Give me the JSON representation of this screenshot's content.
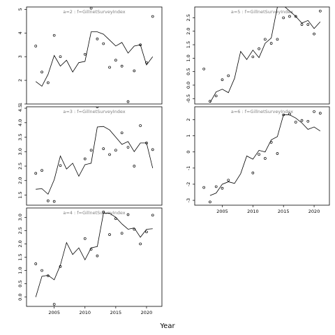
{
  "figure": {
    "xlabel": "Year"
  },
  "chart_data": [
    {
      "type": "scatter",
      "strip": "a=2 : f=GillnetSurveyIndex",
      "xlim": [
        2000.5,
        2022.5
      ],
      "ylim": [
        1.0,
        5.1
      ],
      "yticks": [
        "1",
        "2",
        "3",
        "4",
        "5"
      ],
      "xticks": [],
      "series": [
        {
          "x": [
            2002,
            2003,
            2004,
            2005,
            2006,
            2007,
            2008,
            2009,
            2010,
            2011,
            2012,
            2013,
            2014,
            2015,
            2016,
            2017,
            2018,
            2019,
            2020,
            2021
          ],
          "y": [
            1.95,
            1.75,
            2.25,
            3.05,
            2.6,
            2.85,
            2.35,
            2.75,
            2.8,
            4.05,
            4.05,
            3.95,
            3.7,
            3.45,
            3.6,
            3.15,
            3.45,
            3.5,
            2.65,
            3.0
          ]
        },
        {
          "x": [
            2002,
            2003,
            2004,
            2005,
            2006,
            2010,
            2011,
            2012,
            2013,
            2014,
            2015,
            2016,
            2017,
            2018,
            2019,
            2020,
            2021
          ],
          "y": [
            3.45,
            2.35,
            1.9,
            3.9,
            3.0,
            3.1,
            5.05,
            3.75,
            3.55,
            2.55,
            2.85,
            2.6,
            1.1,
            2.4,
            3.5,
            2.75,
            4.7
          ]
        }
      ]
    },
    {
      "type": "scatter",
      "strip": "a=3 : f=GillnetSurveyIndex",
      "xlim": [
        2000.5,
        2022.5
      ],
      "ylim": [
        1.15,
        4.55
      ],
      "yticks": [
        "1.5",
        "2.0",
        "2.5",
        "3.0",
        "3.5",
        "4.0",
        "4.5"
      ],
      "xticks": [],
      "series": [
        {
          "x": [
            2002,
            2003,
            2004,
            2005,
            2006,
            2007,
            2008,
            2009,
            2010,
            2011,
            2012,
            2013,
            2014,
            2015,
            2016,
            2017,
            2018,
            2019,
            2020,
            2021
          ],
          "y": [
            1.7,
            1.72,
            1.53,
            2.03,
            2.85,
            2.4,
            2.6,
            2.15,
            2.55,
            2.6,
            3.85,
            3.87,
            3.75,
            3.5,
            3.25,
            3.35,
            3.0,
            3.3,
            3.3,
            2.43
          ]
        },
        {
          "x": [
            2002,
            2003,
            2004,
            2005,
            2006,
            2010,
            2011,
            2012,
            2013,
            2014,
            2015,
            2016,
            2017,
            2018,
            2019,
            2020,
            2021
          ],
          "y": [
            2.25,
            2.35,
            1.3,
            1.28,
            2.52,
            2.75,
            3.05,
            4.55,
            3.1,
            2.9,
            3.05,
            3.65,
            3.15,
            2.5,
            3.9,
            3.3,
            3.07
          ]
        }
      ]
    },
    {
      "type": "scatter",
      "strip": "a=4 : f=GillnetSurveyIndex",
      "xlim": [
        2000.5,
        2022.5
      ],
      "ylim": [
        -0.35,
        3.35
      ],
      "yticks": [
        "0.0",
        "0.5",
        "1.0",
        "1.5",
        "2.0",
        "2.5",
        "3.0"
      ],
      "xticks": [
        "2005",
        "2010",
        "2015",
        "2020"
      ],
      "series": [
        {
          "x": [
            2002,
            2003,
            2004,
            2005,
            2006,
            2007,
            2008,
            2009,
            2010,
            2011,
            2012,
            2013,
            2014,
            2015,
            2016,
            2017,
            2018,
            2019,
            2020,
            2021
          ],
          "y": [
            0.0,
            0.78,
            0.82,
            0.65,
            1.2,
            2.05,
            1.6,
            1.85,
            1.4,
            1.85,
            1.9,
            3.15,
            3.15,
            3.0,
            2.75,
            2.55,
            2.6,
            2.25,
            2.55,
            2.57
          ]
        },
        {
          "x": [
            2002,
            2003,
            2004,
            2005,
            2006,
            2010,
            2011,
            2012,
            2013,
            2014,
            2015,
            2016,
            2017,
            2018,
            2019,
            2020,
            2021
          ],
          "y": [
            1.25,
            1.0,
            0.8,
            -0.27,
            1.15,
            2.2,
            1.8,
            1.55,
            3.2,
            2.35,
            2.95,
            2.4,
            3.1,
            2.55,
            2.0,
            2.45,
            3.08
          ]
        }
      ]
    },
    {
      "type": "scatter",
      "strip": "a=5 : f=GillnetSurveyIndex",
      "xlim": [
        2000.5,
        2022.5
      ],
      "ylim": [
        -0.7,
        2.9
      ],
      "yticks": [
        "-0.5",
        "0.0",
        "0.5",
        "1.0",
        "1.5",
        "2.0",
        "2.5"
      ],
      "xticks": [],
      "series": [
        {
          "x": [
            2003,
            2004,
            2005,
            2006,
            2007,
            2008,
            2009,
            2010,
            2011,
            2012,
            2013,
            2014,
            2015,
            2016,
            2017,
            2018,
            2019,
            2020,
            2021
          ],
          "y": [
            -0.65,
            -0.25,
            -0.15,
            -0.28,
            0.25,
            1.25,
            0.95,
            1.3,
            1.02,
            1.55,
            1.75,
            2.9,
            2.95,
            2.75,
            2.55,
            2.3,
            2.4,
            2.1,
            2.35
          ]
        },
        {
          "x": [
            2002,
            2003,
            2004,
            2005,
            2006,
            2010,
            2011,
            2012,
            2013,
            2014,
            2015,
            2016,
            2017,
            2018,
            2019,
            2020,
            2021
          ],
          "y": [
            0.6,
            -0.6,
            -0.4,
            0.2,
            0.35,
            1.05,
            1.35,
            1.7,
            1.55,
            1.7,
            2.5,
            2.55,
            2.55,
            2.25,
            2.25,
            1.9,
            2.75
          ]
        }
      ]
    },
    {
      "type": "scatter",
      "strip": "a=6 : f=GillnetSurveyIndex",
      "xlim": [
        2000.5,
        2022.5
      ],
      "ylim": [
        -3.3,
        2.8
      ],
      "yticks": [
        "-3",
        "-2",
        "-1",
        "0",
        "1",
        "2"
      ],
      "xticks": [
        "2005",
        "2010",
        "2015",
        "2020"
      ],
      "series": [
        {
          "x": [
            2003,
            2004,
            2005,
            2006,
            2007,
            2008,
            2009,
            2010,
            2011,
            2012,
            2013,
            2014,
            2015,
            2016,
            2017,
            2018,
            2019,
            2020,
            2021
          ],
          "y": [
            -2.7,
            -2.55,
            -2.0,
            -1.85,
            -1.95,
            -1.35,
            -0.25,
            -0.45,
            0.1,
            0.0,
            0.75,
            0.95,
            2.3,
            2.3,
            2.1,
            1.8,
            1.4,
            1.55,
            1.3
          ]
        },
        {
          "x": [
            2002,
            2003,
            2004,
            2005,
            2006,
            2010,
            2011,
            2012,
            2013,
            2014,
            2015,
            2016,
            2017,
            2018,
            2019,
            2020,
            2021
          ],
          "y": [
            -2.2,
            -3.1,
            -2.15,
            -2.25,
            -1.75,
            -1.3,
            -0.15,
            -0.4,
            0.6,
            -0.1,
            2.3,
            2.35,
            1.85,
            1.95,
            1.9,
            2.5,
            2.4
          ]
        }
      ]
    }
  ]
}
